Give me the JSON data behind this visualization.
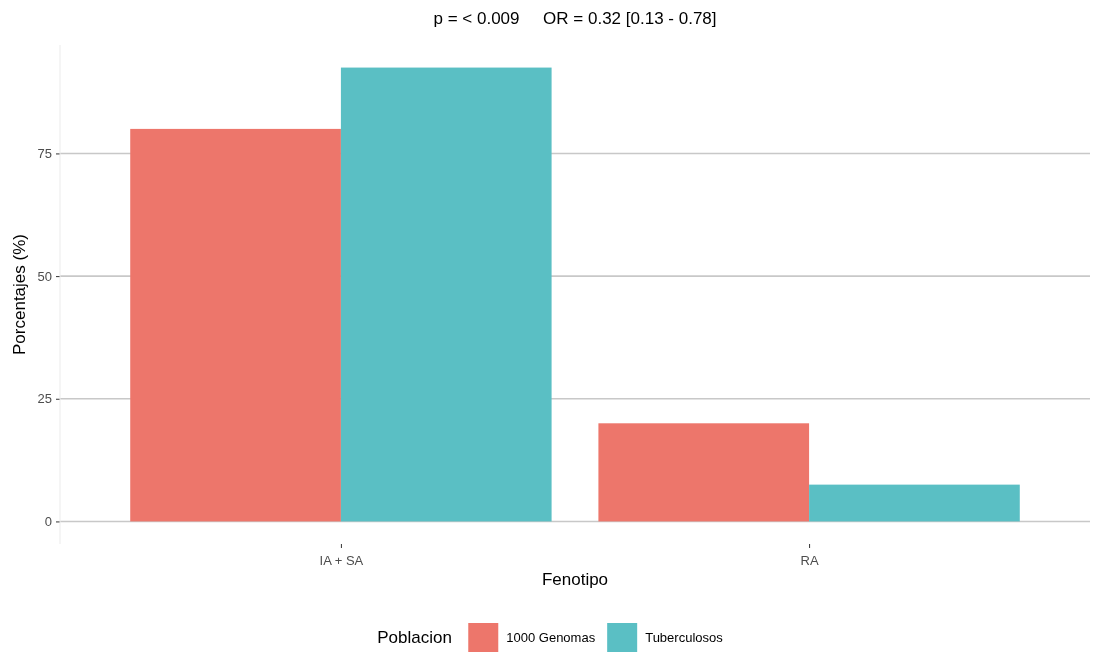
{
  "chart_data": {
    "type": "bar",
    "title": "p = < 0.009     OR = 0.32 [0.13 - 0.78]",
    "xlabel": "Fenotipo",
    "ylabel": "Porcentajes (%)",
    "legend_title": "Poblacion",
    "categories": [
      "IA + SA",
      "RA"
    ],
    "series": [
      {
        "name": "1000 Genomas",
        "color": "#ed766b",
        "values": [
          80,
          20
        ]
      },
      {
        "name": "Tuberculosos",
        "color": "#5abfc4",
        "values": [
          92.5,
          7.5
        ]
      }
    ],
    "ylim": [
      -4.6,
      97.1
    ],
    "yticks": [
      0,
      25,
      50,
      75
    ],
    "grid": "y",
    "legend": "bottom"
  }
}
